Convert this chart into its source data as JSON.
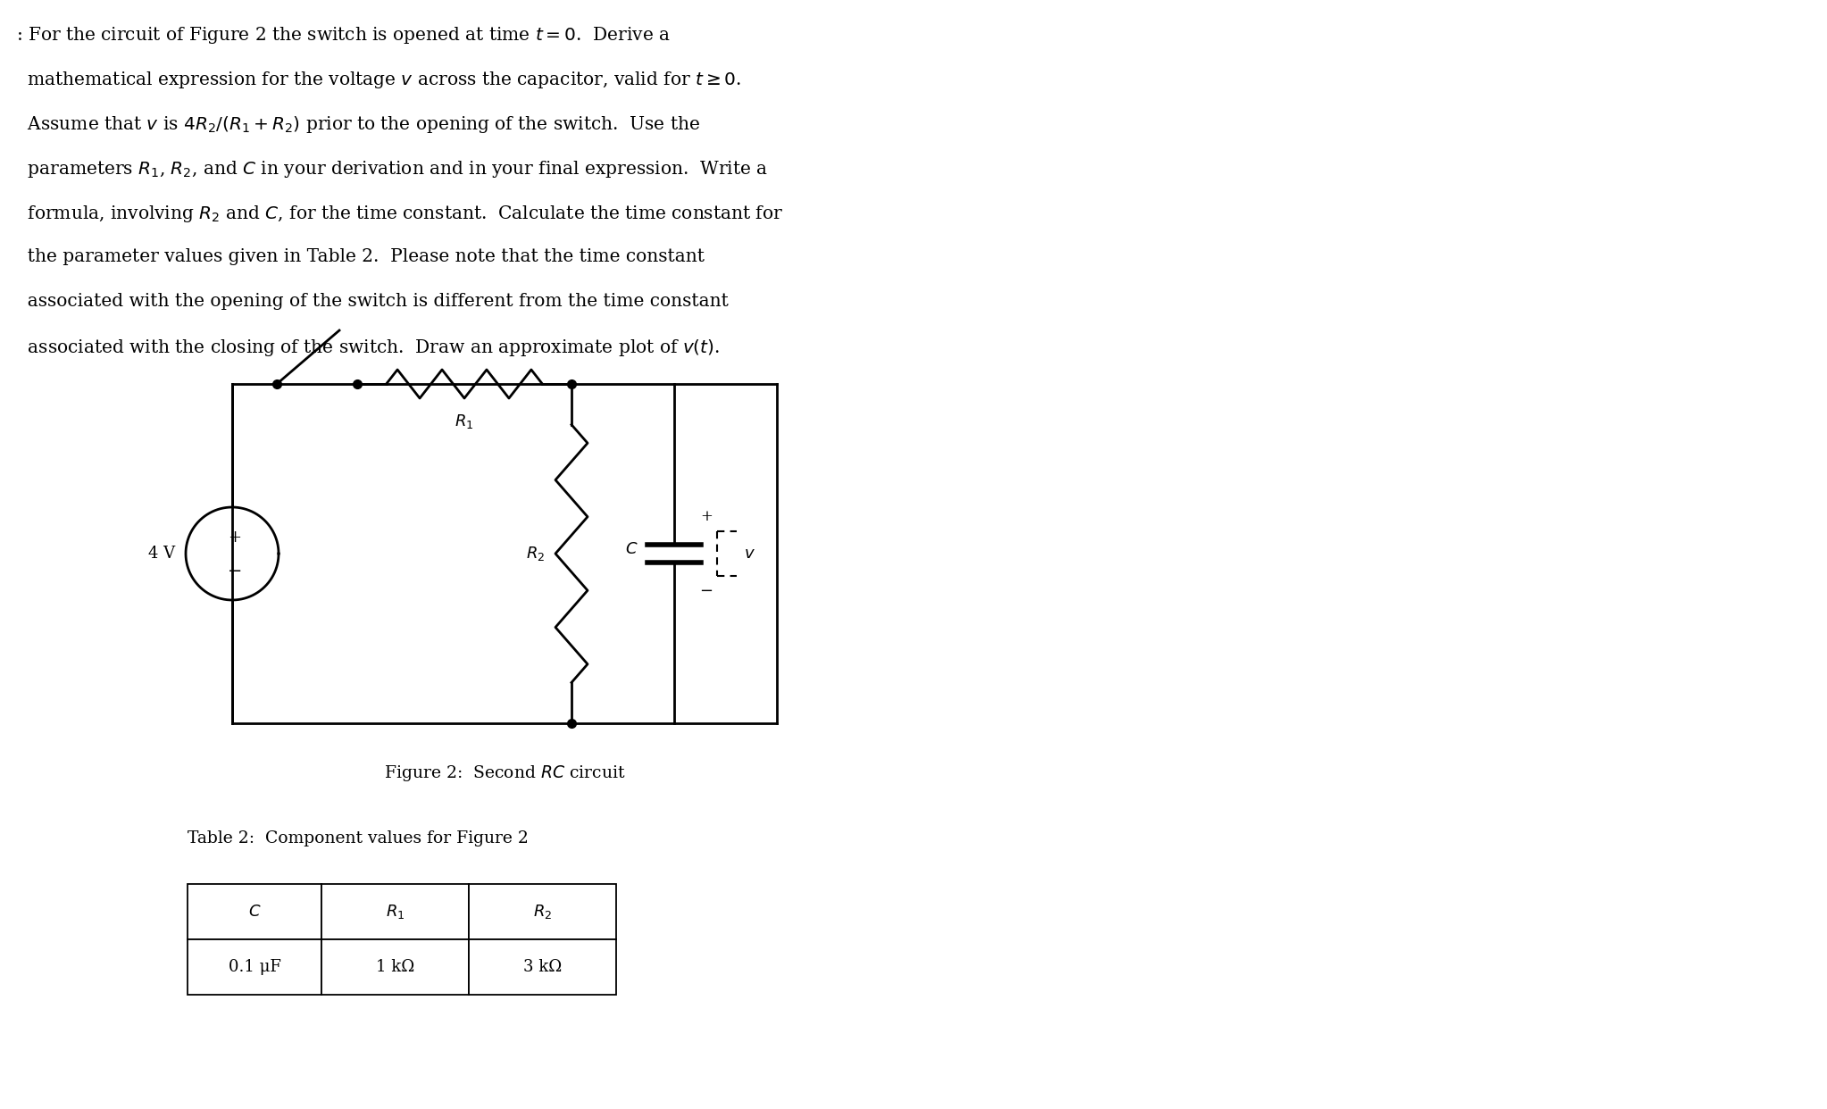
{
  "bg_color": "#ffffff",
  "text_color": "#000000",
  "fig_width": 20.46,
  "fig_height": 12.42,
  "dpi": 100,
  "paragraph_lines": [
    ": For the circuit of Figure 2 the switch is opened at time $t = 0$.  Derive a",
    "  mathematical expression for the voltage $v$ across the capacitor, valid for $t \\geq 0$.",
    "  Assume that $v$ is $4R_2/(R_1 + R_2)$ prior to the opening of the switch.  Use the",
    "  parameters $R_1$, $R_2$, and $C$ in your derivation and in your final expression.  Write a",
    "  formula, involving $R_2$ and $C$, for the time constant.  Calculate the time constant for",
    "  the parameter values given in Table 2.  Please note that the time constant",
    "  associated with the opening of the switch is different from the time constant",
    "  associated with the closing of the switch.  Draw an approximate plot of $v(t)$."
  ],
  "figure_caption": "Figure 2:  Second RC circuit",
  "table_caption": "Table 2:  Component values for Figure 2",
  "table_headers": [
    "C",
    "R1",
    "R2"
  ],
  "table_values": [
    "0.1 μF",
    "1 kΩ",
    "3 kΩ"
  ]
}
